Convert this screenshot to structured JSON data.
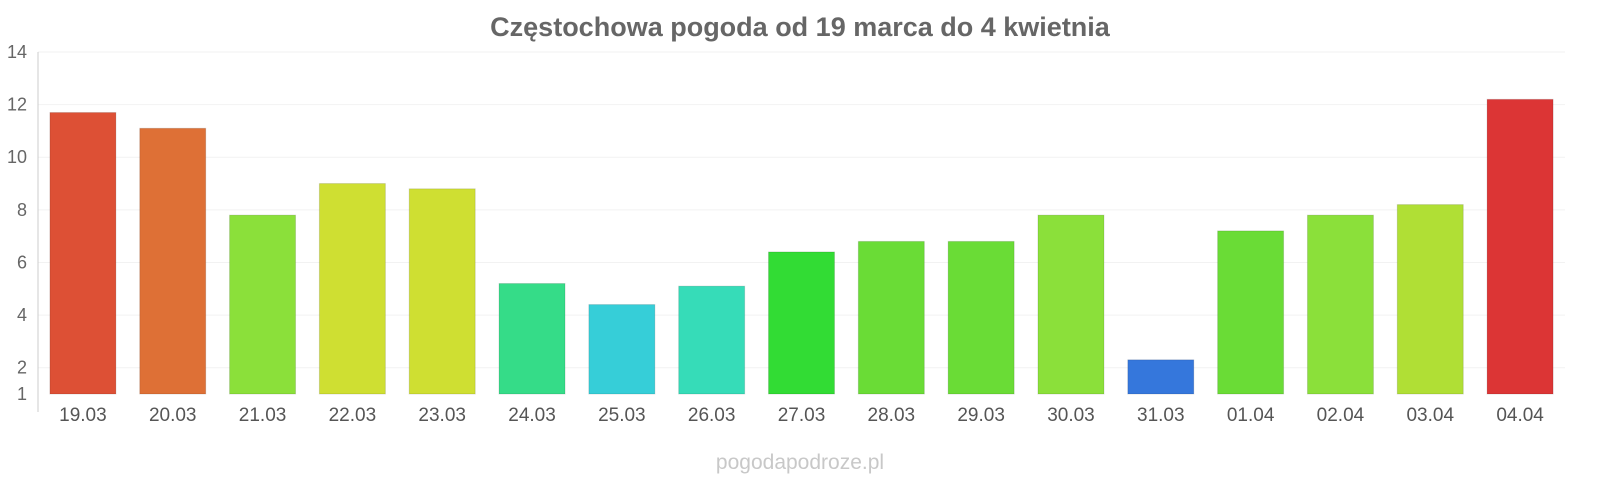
{
  "chart_data": {
    "type": "bar",
    "title": "Częstochowa pogoda od 19 marca do 4 kwietnia",
    "xlabel": "",
    "ylabel": "",
    "categories": [
      "19.03",
      "20.03",
      "21.03",
      "22.03",
      "23.03",
      "24.03",
      "25.03",
      "26.03",
      "27.03",
      "28.03",
      "29.03",
      "30.03",
      "31.03",
      "01.04",
      "02.04",
      "03.04",
      "04.04"
    ],
    "values": [
      11.7,
      11.1,
      7.8,
      9.0,
      8.8,
      5.2,
      4.4,
      5.1,
      6.4,
      6.8,
      6.8,
      7.8,
      2.3,
      7.2,
      7.8,
      8.2,
      12.2
    ],
    "colors": [
      "#dd5035",
      "#de7036",
      "#8be03a",
      "#cfdf32",
      "#cfdf32",
      "#35dc88",
      "#36ced8",
      "#36dcb8",
      "#32dc34",
      "#6adc36",
      "#6adc36",
      "#8be03a",
      "#3577dc",
      "#6adc36",
      "#8be03a",
      "#b0df35",
      "#dc3535"
    ],
    "ylim": [
      1,
      14
    ],
    "yticks": [
      1,
      2,
      4,
      6,
      8,
      10,
      12,
      14
    ],
    "grid": true,
    "legend": "none"
  },
  "watermark": "pogodapodroze.pl"
}
